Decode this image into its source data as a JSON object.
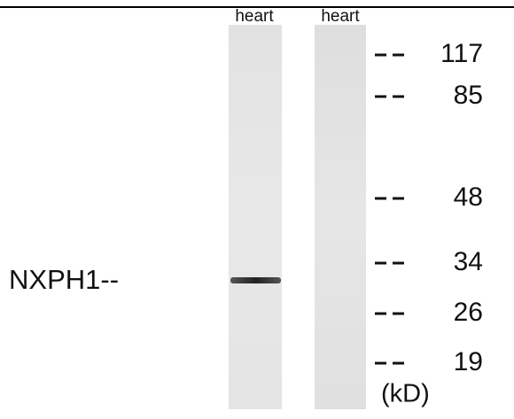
{
  "lanes": [
    "heart",
    "heart"
  ],
  "band_label": "NXPH1--",
  "markers": [
    "117",
    "85",
    "48",
    "34",
    "26",
    "19"
  ],
  "unit": "(kD)"
}
